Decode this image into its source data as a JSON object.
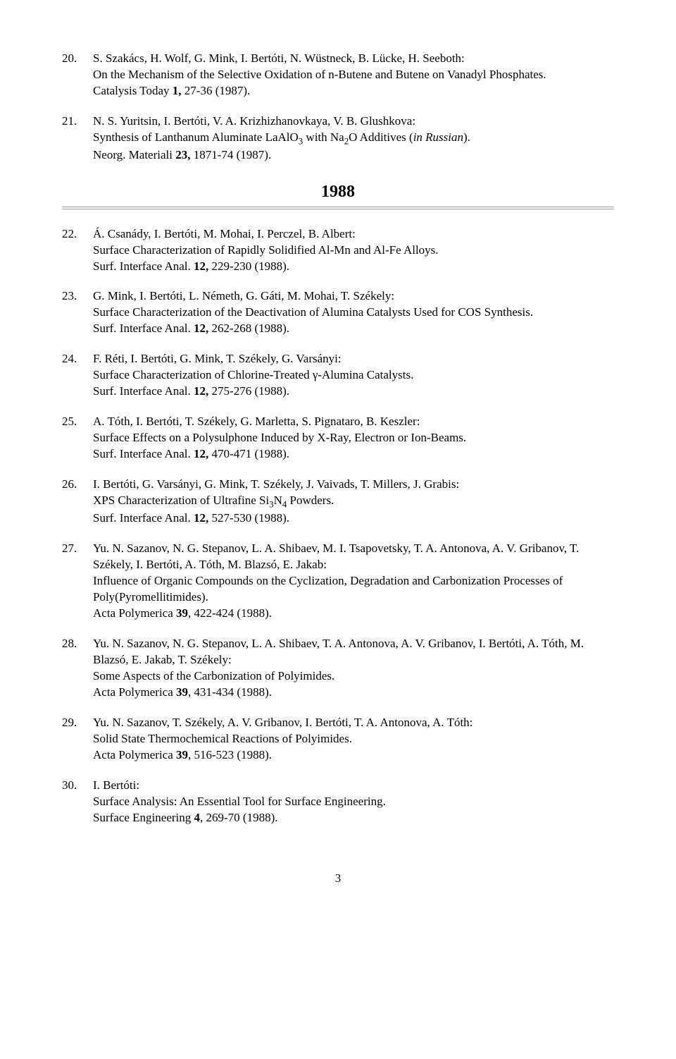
{
  "entries": [
    {
      "num": "20.",
      "authors": "S. Szakács, H. Wolf, G. Mink, I. Bertóti, N. Wüstneck, B. Lücke, H. Seeboth:",
      "title": "On the Mechanism of the Selective Oxidation of n-Butene and Butene on Vanadyl Phosphates.",
      "cite_pre": "Catalysis Today ",
      "cite_bold": "1,",
      "cite_post": " 27-36 (1987)."
    },
    {
      "num": "21.",
      "authors": "N. S. Yuritsin, I. Bertóti, V. A. Krizhizhanovkaya, V. B. Glushkova:",
      "title_html": "Synthesis of Lanthanum Aluminate LaAlO<span class=\"sub\">3</span> with Na<span class=\"sub\">2</span>O Additives (<span class=\"ital\">in Russian</span>).",
      "cite_pre": "Neorg. Materiali ",
      "cite_bold": "23,",
      "cite_post": " 1871-74 (1987)."
    }
  ],
  "year": "1988",
  "entries2": [
    {
      "num": "22.",
      "authors": "Á. Csanády, I. Bertóti, M. Mohai, I. Perczel, B. Albert:",
      "title": "Surface Characterization of Rapidly Solidified Al-Mn and Al-Fe Alloys.",
      "cite_pre": "Surf. Interface Anal. ",
      "cite_bold": "12,",
      "cite_post": " 229-230 (1988)."
    },
    {
      "num": "23.",
      "authors": "G. Mink, I. Bertóti, L. Németh, G. Gáti, M. Mohai, T. Székely:",
      "title": "Surface Characterization of the Deactivation of Alumina Catalysts Used for COS Synthesis.",
      "cite_pre": "Surf. Interface Anal. ",
      "cite_bold": "12,",
      "cite_post": " 262-268 (1988)."
    },
    {
      "num": "24.",
      "authors": "F. Réti, I. Bertóti, G. Mink, T. Székely, G. Varsányi:",
      "title": "Surface Characterization of Chlorine-Treated γ-Alumina Catalysts.",
      "cite_pre": "Surf. Interface Anal. ",
      "cite_bold": "12,",
      "cite_post": " 275-276 (1988)."
    },
    {
      "num": "25.",
      "authors": "A. Tóth, I. Bertóti, T. Székely, G. Marletta, S. Pignataro, B. Keszler:",
      "title": "Surface Effects on a Polysulphone Induced by X-Ray, Electron or Ion-Beams.",
      "cite_pre": "Surf. Interface Anal. ",
      "cite_bold": "12,",
      "cite_post": " 470-471 (1988)."
    },
    {
      "num": "26.",
      "authors": "I. Bertóti, G. Varsányi, G. Mink, T. Székely, J. Vaivads, T. Millers, J. Grabis:",
      "title_html": "XPS Characterization of Ultrafine Si<span class=\"sub\">3</span>N<span class=\"sub\">4</span> Powders.",
      "cite_pre": "Surf. Interface Anal. ",
      "cite_bold": "12,",
      "cite_post": " 527-530 (1988)."
    },
    {
      "num": "27.",
      "authors": "Yu. N. Sazanov, N. G. Stepanov, L. A. Shibaev, M. I. Tsapovetsky, T. A. Antonova, A. V. Gribanov, T. Székely, I. Bertóti, A. Tóth, M. Blazsó, E. Jakab:",
      "title": "Influence of Organic Compounds on the Cyclization, Degradation and Carbonization Processes of Poly(Pyromellitimides).",
      "cite_pre": "Acta Polymerica ",
      "cite_bold": "39",
      "cite_post": ", 422-424 (1988)."
    },
    {
      "num": "28.",
      "authors": "Yu. N. Sazanov, N. G. Stepanov, L. A. Shibaev, T. A. Antonova, A. V. Gribanov, I. Bertóti, A. Tóth, M. Blazsó, E. Jakab, T. Székely:",
      "title": "Some Aspects of the Carbonization of Polyimides.",
      "cite_pre": "Acta Polymerica ",
      "cite_bold": "39",
      "cite_post": ", 431-434 (1988)."
    },
    {
      "num": "29.",
      "authors": "Yu. N. Sazanov, T. Székely, A. V. Gribanov, I. Bertóti, T. A. Antonova, A. Tóth:",
      "title": "Solid State Thermochemical Reactions of Polyimides.",
      "cite_pre": "Acta Polymerica ",
      "cite_bold": "39",
      "cite_post": ", 516-523 (1988)."
    },
    {
      "num": "30.",
      "authors": "I. Bertóti:",
      "title": "Surface Analysis: An Essential Tool for Surface Engineering.",
      "cite_pre": "Surface Engineering ",
      "cite_bold": "4",
      "cite_post": ", 269-70 (1988)."
    }
  ],
  "page_number": "3"
}
